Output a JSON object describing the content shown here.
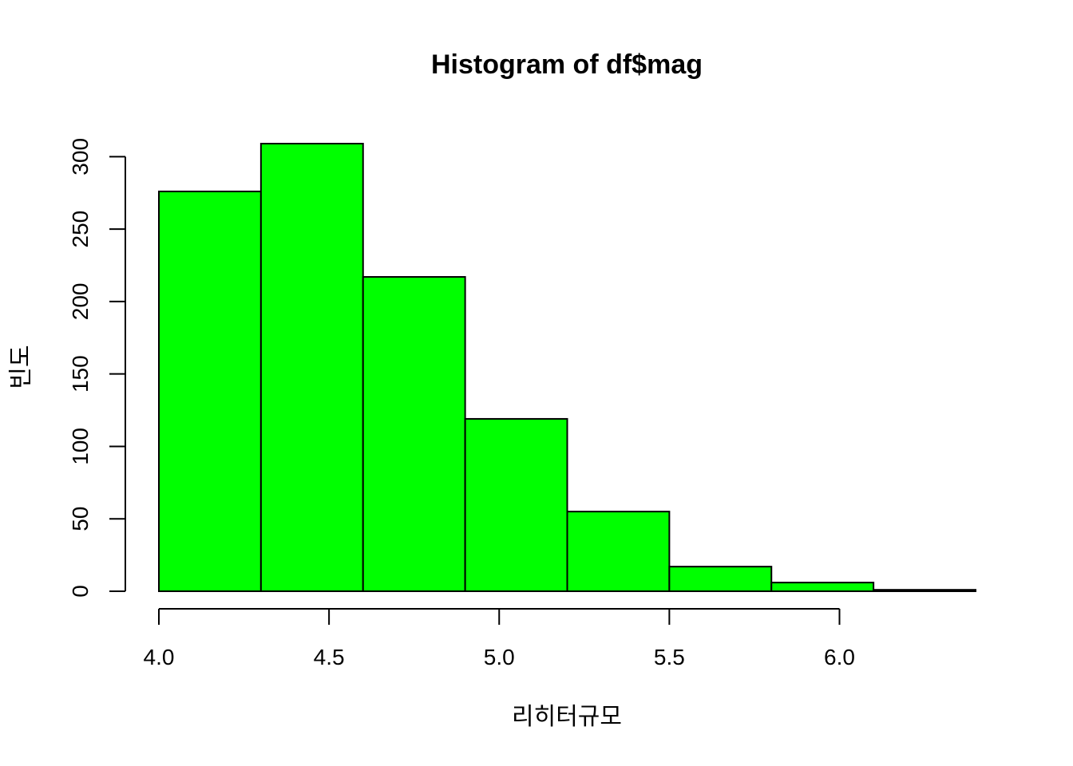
{
  "chart_data": {
    "type": "bar",
    "title": "Histogram of df$mag",
    "xlabel": "리히터규모",
    "ylabel": "빈도",
    "bin_edges": [
      4.0,
      4.3,
      4.6,
      4.9,
      5.2,
      5.5,
      5.8,
      6.1,
      6.4
    ],
    "values": [
      276,
      309,
      217,
      119,
      55,
      17,
      6,
      1
    ],
    "xlim": [
      4.0,
      6.4
    ],
    "ylim": [
      0,
      309
    ],
    "x_ticks": [
      4.0,
      4.5,
      5.0,
      5.5,
      6.0
    ],
    "x_tick_labels": [
      "4.0",
      "4.5",
      "5.0",
      "5.5",
      "6.0"
    ],
    "y_ticks": [
      0,
      50,
      100,
      150,
      200,
      250,
      300
    ],
    "y_tick_labels": [
      "0",
      "50",
      "100",
      "150",
      "200",
      "250",
      "300"
    ],
    "bar_color": "#00FF00",
    "border_color": "#000000",
    "grid": false
  }
}
